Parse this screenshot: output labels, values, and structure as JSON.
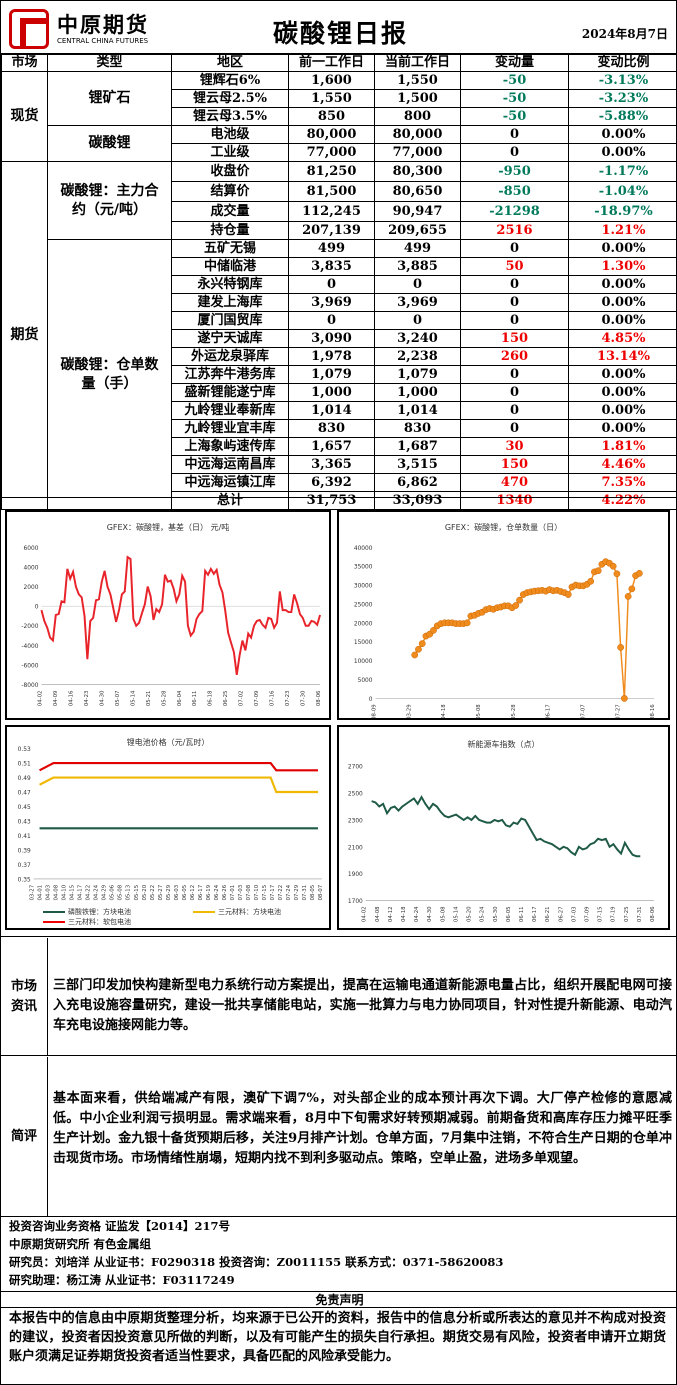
{
  "header": {
    "logo_cn": "中原期货",
    "logo_en": "CENTRAL CHINA FUTURES",
    "title": "碳酸锂日报",
    "date": "2024年8月7日"
  },
  "table": {
    "columns": [
      "市场",
      "类型",
      "地区",
      "前一工作日",
      "当前工作日",
      "变动量",
      "变动比例"
    ],
    "spot_label": "现货",
    "futures_label": "期货",
    "ore_label": "锂矿石",
    "carbonate_label": "碳酸锂",
    "contract_label": "碳酸锂：主力合约（元/吨）",
    "warehouse_label": "碳酸锂：仓单数量（手）",
    "rows": [
      {
        "region": "锂辉石6%",
        "prev": "1,600",
        "cur": "1,550",
        "chg": "-50",
        "pct": "-3.13%",
        "dir": "neg"
      },
      {
        "region": "锂云母2.5%",
        "prev": "1,550",
        "cur": "1,500",
        "chg": "-50",
        "pct": "-3.23%",
        "dir": "neg"
      },
      {
        "region": "锂云母3.5%",
        "prev": "850",
        "cur": "800",
        "chg": "-50",
        "pct": "-5.88%",
        "dir": "neg"
      },
      {
        "region": "电池级",
        "prev": "80,000",
        "cur": "80,000",
        "chg": "0",
        "pct": "0.00%",
        "dir": "zero"
      },
      {
        "region": "工业级",
        "prev": "77,000",
        "cur": "77,000",
        "chg": "0",
        "pct": "0.00%",
        "dir": "zero"
      },
      {
        "region": "收盘价",
        "prev": "81,250",
        "cur": "80,300",
        "chg": "-950",
        "pct": "-1.17%",
        "dir": "neg"
      },
      {
        "region": "结算价",
        "prev": "81,500",
        "cur": "80,650",
        "chg": "-850",
        "pct": "-1.04%",
        "dir": "neg"
      },
      {
        "region": "成交量",
        "prev": "112,245",
        "cur": "90,947",
        "chg": "-21298",
        "pct": "-18.97%",
        "dir": "neg"
      },
      {
        "region": "持仓量",
        "prev": "207,139",
        "cur": "209,655",
        "chg": "2516",
        "pct": "1.21%",
        "dir": "pos"
      },
      {
        "region": "五矿无锡",
        "prev": "499",
        "cur": "499",
        "chg": "0",
        "pct": "0.00%",
        "dir": "zero"
      },
      {
        "region": "中储临港",
        "prev": "3,835",
        "cur": "3,885",
        "chg": "50",
        "pct": "1.30%",
        "dir": "pos"
      },
      {
        "region": "永兴特钢库",
        "prev": "0",
        "cur": "0",
        "chg": "0",
        "pct": "0.00%",
        "dir": "zero"
      },
      {
        "region": "建发上海库",
        "prev": "3,969",
        "cur": "3,969",
        "chg": "0",
        "pct": "0.00%",
        "dir": "zero"
      },
      {
        "region": "厦门国贸库",
        "prev": "0",
        "cur": "0",
        "chg": "0",
        "pct": "0.00%",
        "dir": "zero"
      },
      {
        "region": "遂宁天诚库",
        "prev": "3,090",
        "cur": "3,240",
        "chg": "150",
        "pct": "4.85%",
        "dir": "pos"
      },
      {
        "region": "外运龙泉驿库",
        "prev": "1,978",
        "cur": "2,238",
        "chg": "260",
        "pct": "13.14%",
        "dir": "pos"
      },
      {
        "region": "江苏奔牛港务库",
        "prev": "1,079",
        "cur": "1,079",
        "chg": "0",
        "pct": "0.00%",
        "dir": "zero"
      },
      {
        "region": "盛新锂能遂宁库",
        "prev": "1,000",
        "cur": "1,000",
        "chg": "0",
        "pct": "0.00%",
        "dir": "zero"
      },
      {
        "region": "九岭锂业奉新库",
        "prev": "1,014",
        "cur": "1,014",
        "chg": "0",
        "pct": "0.00%",
        "dir": "zero"
      },
      {
        "region": "九岭锂业宜丰库",
        "prev": "830",
        "cur": "830",
        "chg": "0",
        "pct": "0.00%",
        "dir": "zero"
      },
      {
        "region": "上海象屿速传库",
        "prev": "1,657",
        "cur": "1,687",
        "chg": "30",
        "pct": "1.81%",
        "dir": "pos"
      },
      {
        "region": "中远海运南昌库",
        "prev": "3,365",
        "cur": "3,515",
        "chg": "150",
        "pct": "4.46%",
        "dir": "pos"
      },
      {
        "region": "中远海运镇江库",
        "prev": "6,392",
        "cur": "6,862",
        "chg": "470",
        "pct": "7.35%",
        "dir": "pos"
      },
      {
        "region": "总计",
        "prev": "31,753",
        "cur": "33,093",
        "chg": "1340",
        "pct": "4.22%",
        "dir": "pos"
      }
    ]
  },
  "colors": {
    "neg": "#007a5a",
    "pos": "#e00000",
    "basis": "#e8232a",
    "warrant": "#f08c1e",
    "nev": "#1e5a46"
  },
  "chart_data": [
    {
      "type": "line",
      "title": "GFEX：碳酸锂，基差（日）  元/吨",
      "ylim": [
        -8000,
        6000
      ],
      "yticks": [
        -8000,
        -6000,
        -4000,
        -2000,
        0,
        2000,
        4000,
        6000
      ],
      "xticks": [
        "04-02",
        "04-09",
        "04-16",
        "04-23",
        "04-30",
        "05-07",
        "05-14",
        "05-21",
        "05-28",
        "06-04",
        "06-11",
        "06-18",
        "06-25",
        "07-02",
        "07-09",
        "07-16",
        "07-23",
        "07-30",
        "08-06"
      ],
      "values": [
        -400,
        -1500,
        -2200,
        -3200,
        -3500,
        -900,
        -800,
        500,
        400,
        3800,
        2800,
        3500,
        2000,
        1200,
        900,
        -1000,
        -5400,
        -1500,
        -1200,
        600,
        700,
        2500,
        3600,
        2000,
        1200,
        -200,
        -1600,
        -400,
        1200,
        1500,
        5000,
        4800,
        -1300,
        -2000,
        -1700,
        -700,
        200,
        2000,
        1000,
        -1400,
        -300,
        -600,
        200,
        3200,
        2500,
        2600,
        1800,
        500,
        1200,
        3100,
        2500,
        -2000,
        -3000,
        -2600,
        -1300,
        -800,
        -500,
        3600,
        3200,
        3800,
        3300,
        3700,
        2200,
        1400,
        -500,
        -2700,
        -3700,
        -4700,
        -7000,
        -5000,
        -3500,
        -4500,
        -2800,
        -3200,
        -2000,
        -1500,
        -1400,
        -1900,
        -2200,
        -1200,
        -1300,
        -2200,
        -1700,
        1500,
        -400,
        -400,
        -600,
        -600,
        1200,
        300,
        -800,
        -1200,
        -2000,
        -2000,
        -1500,
        -1600,
        -1900,
        -900
      ]
    },
    {
      "type": "scatter",
      "title": "GFEX：碳酸锂，仓单数量（日）",
      "ylim": [
        0,
        40000
      ],
      "yticks": [
        0,
        5000,
        10000,
        15000,
        20000,
        25000,
        30000,
        35000,
        40000
      ],
      "xticks": [
        "08-09",
        "03-29",
        "04-18",
        "05-08",
        "05-28",
        "06-17",
        "07-07",
        "07-27",
        "08-16"
      ],
      "values": [
        11500,
        13000,
        14500,
        16500,
        17000,
        18000,
        19200,
        19800,
        20000,
        20000,
        20000,
        19800,
        19800,
        19800,
        20000,
        21800,
        22000,
        22500,
        22800,
        23500,
        23800,
        23600,
        24000,
        24200,
        24500,
        24500,
        24000,
        24600,
        26000,
        27500,
        28000,
        28200,
        28400,
        28500,
        28600,
        28400,
        28800,
        28500,
        28600,
        28300,
        28000,
        27500,
        29500,
        30000,
        29800,
        29800,
        30200,
        31000,
        33500,
        33800,
        35500,
        36200,
        35800,
        35000,
        33000,
        13500,
        0,
        27000,
        29000,
        32500,
        33100
      ]
    },
    {
      "type": "line",
      "title": "锂电池价格（元/瓦时）",
      "ylim": [
        0.35,
        0.53
      ],
      "yticks": [
        0.35,
        0.37,
        0.39,
        0.41,
        0.43,
        0.45,
        0.47,
        0.49,
        0.51,
        0.53
      ],
      "xticks": [
        "03-27",
        "04-01",
        "04-03",
        "04-08",
        "04-10",
        "04-15",
        "04-17",
        "04-22",
        "04-24",
        "04-29",
        "05-06",
        "05-08",
        "05-13",
        "05-15",
        "05-20",
        "05-22",
        "05-27",
        "05-29",
        "06-03",
        "06-05",
        "06-12",
        "06-17",
        "06-19",
        "06-24",
        "06-26",
        "07-01",
        "07-03",
        "07-08",
        "07-10",
        "07-15",
        "07-17",
        "07-22",
        "07-24",
        "07-29",
        "07-31",
        "08-05",
        "08-07"
      ],
      "series": [
        {
          "name": "磷酸铁锂：方块电池",
          "color": "#1e5a46",
          "values": [
            0.42,
            0.42,
            0.42,
            0.42,
            0.42,
            0.42
          ]
        },
        {
          "name": "三元材料：方块电池",
          "color": "#f0b800",
          "values": [
            0.48,
            0.49,
            0.49,
            0.49,
            0.47,
            0.47
          ]
        },
        {
          "name": "三元材料：软包电池",
          "color": "#e00000",
          "values": [
            0.5,
            0.51,
            0.51,
            0.51,
            0.5,
            0.5
          ]
        }
      ]
    },
    {
      "type": "line",
      "title": "新能源车指数（点）",
      "ylim": [
        1700,
        2700
      ],
      "yticks": [
        1700,
        1900,
        2100,
        2300,
        2500,
        2700
      ],
      "xticks": [
        "04-02",
        "04-08",
        "04-12",
        "04-18",
        "04-24",
        "04-30",
        "05-08",
        "05-14",
        "05-20",
        "05-24",
        "05-30",
        "06-05",
        "06-11",
        "06-17",
        "06-21",
        "06-27",
        "07-03",
        "07-09",
        "07-15",
        "07-19",
        "07-25",
        "07-31",
        "08-06"
      ],
      "values": [
        2440,
        2430,
        2400,
        2420,
        2350,
        2390,
        2400,
        2370,
        2400,
        2420,
        2440,
        2460,
        2420,
        2470,
        2420,
        2380,
        2420,
        2400,
        2360,
        2330,
        2320,
        2330,
        2340,
        2320,
        2300,
        2320,
        2300,
        2330,
        2300,
        2290,
        2280,
        2280,
        2300,
        2290,
        2300,
        2260,
        2250,
        2280,
        2270,
        2310,
        2300,
        2250,
        2200,
        2150,
        2160,
        2140,
        2130,
        2120,
        2100,
        2080,
        2100,
        2090,
        2060,
        2040,
        2100,
        2080,
        2090,
        2120,
        2130,
        2160,
        2150,
        2160,
        2100,
        2120,
        2080,
        2050,
        2130,
        2080,
        2040,
        2030,
        2030
      ]
    }
  ],
  "chart_legend": {
    "lfp": "磷酸铁锂：方块电池",
    "ncm_box": "三元材料：方块电池",
    "ncm_soft": "三元材料：软包电池"
  },
  "sections": {
    "market_label": "市场资讯",
    "market_text": "三部门印发加快构建新型电力系统行动方案提出，提高在运输电通道新能源电量占比，组织开展配电网可接入充电设施容量研究，建设一批共享储能电站，实施一批算力与电力协同项目，针对性提升新能源、电动汽车充电设施接网能力等。",
    "comment_label": "简评",
    "comment_text": "基本面来看，供给端减产有限，澳矿下调7%，对头部企业的成本预计再次下调。大厂停产检修的意愿减低。中小企业利润亏损明显。需求端来看，8月中下旬需求好转预期减弱。前期备货和高库存压力摊平旺季生产计划。金九银十备货预期后移，关注9月排产计划。仓单方面，7月集中注销，不符合生产日期的仓单冲击现货市场。市场情绪性崩塌，短期内找不到利多驱动点。策略，空单止盈，进场多单观望。"
  },
  "footer": {
    "line1": "投资咨询业务资格   证监发【2014】217号",
    "line2": "中原期货研究所   有色金属组",
    "line3": "研究员：刘培洋     从业证书：F0290318      投资咨询：Z0011155      联系方式：0371-58620083",
    "line4": "研究助理：杨江涛     从业证书：F03117249",
    "disclaimer_title": "免责声明",
    "disclaimer": "本报告中的信息由中原期货整理分析，均来源于已公开的资料，报告中的信息分析或所表达的意见并不构成对投资的建议，投资者因投资意见所做的判断，以及有可能产生的损失自行承担。期货交易有风险，投资者申请开立期货账户须满足证券期货投资者适当性要求，具备匹配的风险承受能力。"
  }
}
